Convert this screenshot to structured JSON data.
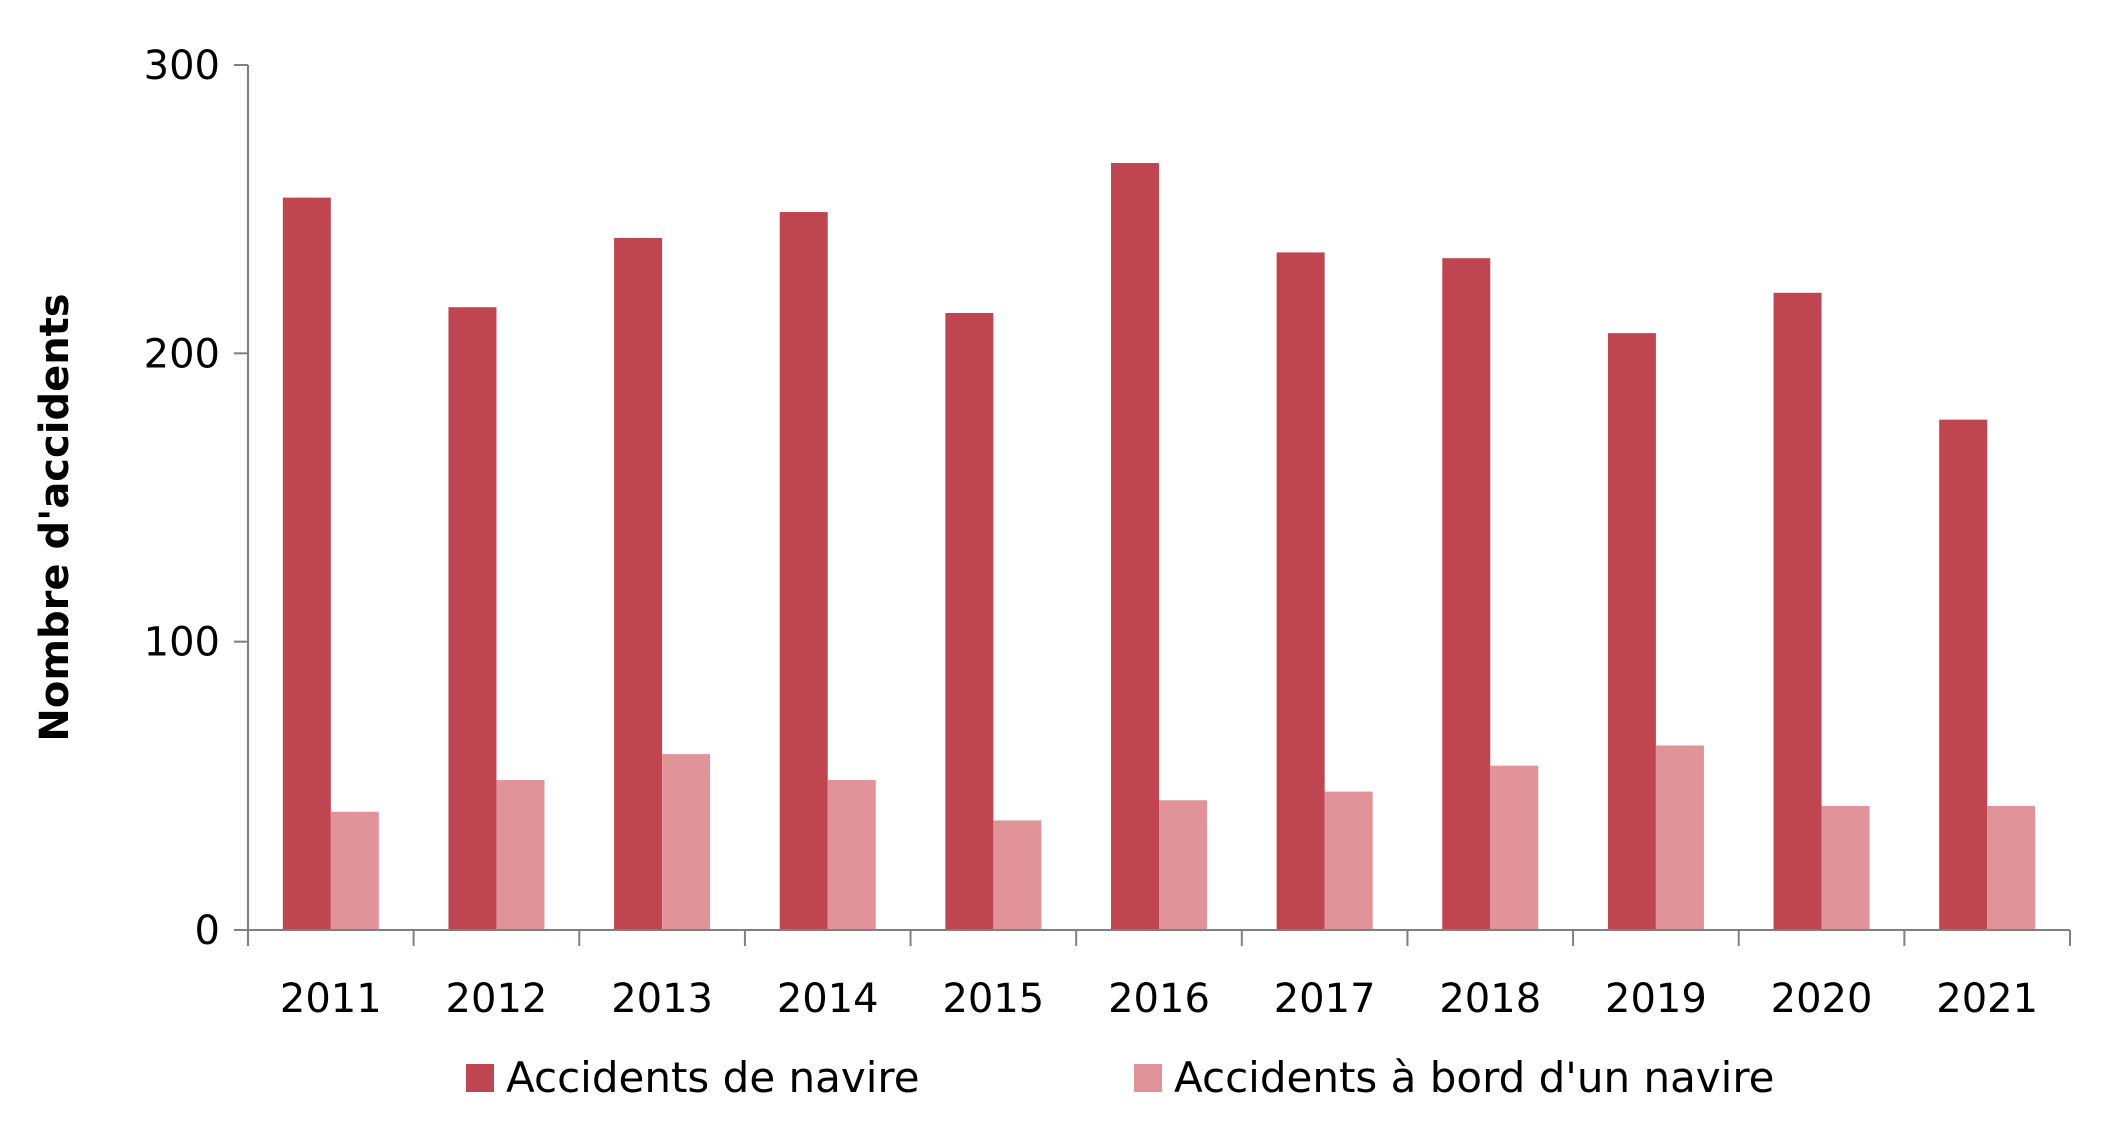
{
  "chart_data": {
    "type": "bar",
    "title": "",
    "xlabel": "",
    "ylabel": "Nombre d'accidents",
    "categories": [
      "2011",
      "2012",
      "2013",
      "2014",
      "2015",
      "2016",
      "2017",
      "2018",
      "2019",
      "2020",
      "2021"
    ],
    "series": [
      {
        "name": "Accidents de navire",
        "values": [
          254,
          216,
          240,
          249,
          214,
          266,
          235,
          233,
          207,
          221,
          177
        ],
        "color": "#bf4551"
      },
      {
        "name": "Accidents à bord d'un navire",
        "values": [
          41,
          52,
          61,
          52,
          38,
          45,
          48,
          57,
          64,
          43,
          43
        ],
        "color": "#e09398"
      }
    ],
    "ylim": [
      0,
      300
    ],
    "yticks": [
      0,
      100,
      200,
      300
    ],
    "grid": false,
    "legend_position": "bottom"
  }
}
